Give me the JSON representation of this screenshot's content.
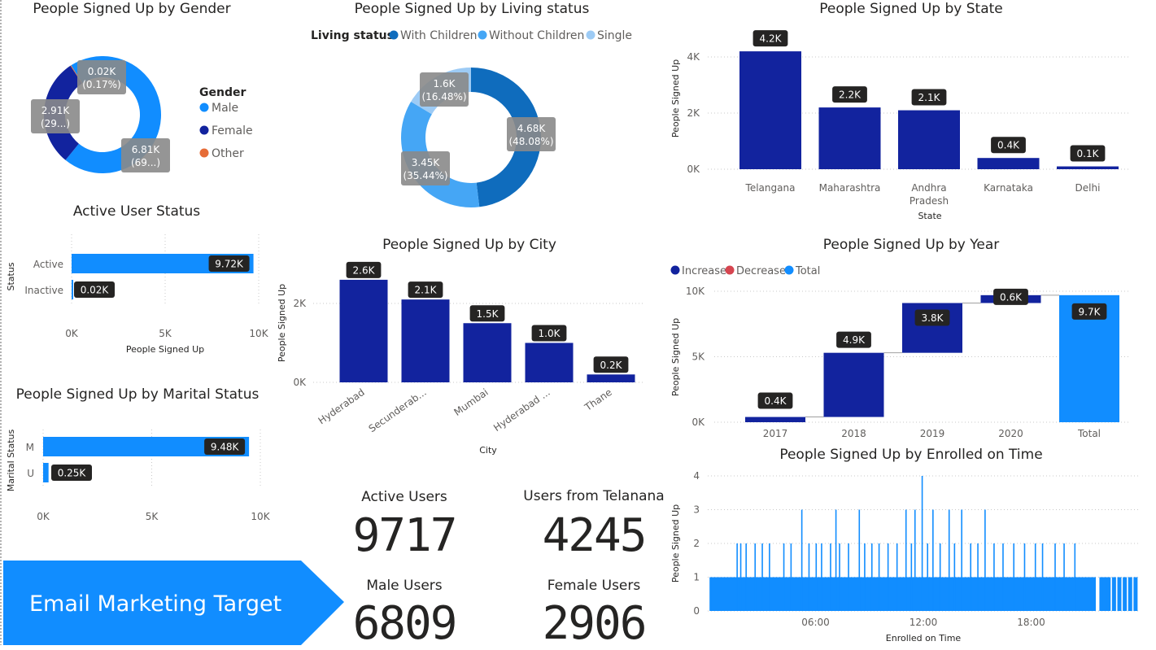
{
  "banner": {
    "text": "Email Marketing Target"
  },
  "kpis": [
    {
      "label": "Active Users",
      "value": "9717"
    },
    {
      "label": "Users from Telanana",
      "value": "4245"
    },
    {
      "label": "Male Users",
      "value": "6809"
    },
    {
      "label": "Female Users",
      "value": "2906"
    }
  ],
  "chart_data": [
    {
      "id": "gender",
      "type": "pie",
      "donut": true,
      "title": "People Signed Up by Gender",
      "legend_title": "Gender",
      "legend_position": "right",
      "series": [
        {
          "name": "Male",
          "value": 6.81,
          "label": "6.81K",
          "pct": "(69...)",
          "color": "#118DFF"
        },
        {
          "name": "Female",
          "value": 2.91,
          "label": "2.91K",
          "pct": "(29...)",
          "color": "#12239E"
        },
        {
          "name": "Other",
          "value": 0.02,
          "label": "0.02K",
          "pct": "(0.17%)",
          "color": "#E66C37"
        }
      ]
    },
    {
      "id": "living",
      "type": "pie",
      "donut": true,
      "title": "People Signed Up by Living status",
      "legend_title": "Living status",
      "legend_position": "top",
      "series": [
        {
          "name": "With Children",
          "value": 4.68,
          "label": "4.68K",
          "pct": "(48.08%)",
          "color": "#0F6CBD"
        },
        {
          "name": "Without Children",
          "value": 3.45,
          "label": "3.45K",
          "pct": "(35.44%)",
          "color": "#45A6F5"
        },
        {
          "name": "Single",
          "value": 1.6,
          "label": "1.6K",
          "pct": "(16.48%)",
          "color": "#9DCBF5"
        }
      ]
    },
    {
      "id": "state",
      "type": "bar",
      "title": "People Signed Up by State",
      "xlabel": "State",
      "ylabel": "People Signed Up",
      "categories": [
        "Telangana",
        "Maharashtra",
        "Andhra Pradesh",
        "Karnataka",
        "Delhi"
      ],
      "values": [
        4.2,
        2.2,
        2.1,
        0.4,
        0.1
      ],
      "labels": [
        "4.2K",
        "2.2K",
        "2.1K",
        "0.4K",
        "0.1K"
      ],
      "ylim": [
        0,
        4.5
      ],
      "ticks": [
        0,
        2,
        4
      ],
      "tick_labels": [
        "0K",
        "2K",
        "4K"
      ],
      "color": "#12239E"
    },
    {
      "id": "active",
      "type": "bar",
      "orientation": "horizontal",
      "title": "Active User Status",
      "xlabel": "People Signed Up",
      "ylabel": "Status",
      "categories": [
        "Active",
        "Inactive"
      ],
      "values": [
        9.72,
        0.02
      ],
      "labels": [
        "9.72K",
        "0.02K"
      ],
      "xlim": [
        0,
        10
      ],
      "ticks": [
        0,
        5,
        10
      ],
      "tick_labels": [
        "0K",
        "5K",
        "10K"
      ],
      "color": "#118DFF"
    },
    {
      "id": "city",
      "type": "bar",
      "title": "People Signed Up by City",
      "xlabel": "City",
      "ylabel": "People Signed Up",
      "categories": [
        "Hyderabad",
        "Secunderab...",
        "Mumbai",
        "Hyderabad ...",
        "Thane"
      ],
      "values": [
        2.6,
        2.1,
        1.5,
        1.0,
        0.2
      ],
      "labels": [
        "2.6K",
        "2.1K",
        "1.5K",
        "1.0K",
        "0.2K"
      ],
      "ylim": [
        0,
        2.9
      ],
      "ticks": [
        0,
        2
      ],
      "tick_labels": [
        "0K",
        "2K"
      ],
      "color": "#12239E"
    },
    {
      "id": "year",
      "type": "waterfall",
      "title": "People Signed Up by Year",
      "ylabel": "People Signed Up",
      "legend_position": "top-left",
      "legend": [
        {
          "name": "Increase",
          "color": "#12239E"
        },
        {
          "name": "Decrease",
          "color": "#D64550"
        },
        {
          "name": "Total",
          "color": "#118DFF"
        }
      ],
      "categories": [
        "2017",
        "2018",
        "2019",
        "2020",
        "Total"
      ],
      "values": [
        0.4,
        4.9,
        3.8,
        0.6,
        9.7
      ],
      "labels": [
        "0.4K",
        "4.9K",
        "3.8K",
        "0.6K",
        "9.7K"
      ],
      "ylim": [
        0,
        10
      ],
      "ticks": [
        0,
        5,
        10
      ],
      "tick_labels": [
        "0K",
        "5K",
        "10K"
      ]
    },
    {
      "id": "marital",
      "type": "bar",
      "orientation": "horizontal",
      "title": "People Signed Up by Marital Status",
      "ylabel": "Marital Status",
      "categories": [
        "M",
        "U"
      ],
      "values": [
        9.48,
        0.25
      ],
      "labels": [
        "9.48K",
        "0.25K"
      ],
      "xlim": [
        0,
        10
      ],
      "ticks": [
        0,
        5,
        10
      ],
      "tick_labels": [
        "0K",
        "5K",
        "10K"
      ],
      "color": "#118DFF"
    },
    {
      "id": "enrolled",
      "type": "bar",
      "title": "People Signed Up by Enrolled on Time",
      "xlabel": "Enrolled on Time",
      "ylabel": "People Signed Up",
      "x_tick_labels": [
        "06:00",
        "12:00",
        "18:00"
      ],
      "x_tick_hours": [
        6,
        12,
        18
      ],
      "xlim_hours": [
        0,
        24
      ],
      "ylim": [
        0,
        4
      ],
      "ticks": [
        0,
        1,
        2,
        3,
        4
      ],
      "tick_labels": [
        "0",
        "1",
        "2",
        "3",
        "4"
      ],
      "baseline_value": 1,
      "baseline_hours": [
        0.1,
        21.6
      ],
      "spikes": [
        {
          "h": 1.6,
          "v": 2
        },
        {
          "h": 1.8,
          "v": 2
        },
        {
          "h": 2.1,
          "v": 2
        },
        {
          "h": 2.6,
          "v": 2
        },
        {
          "h": 3.0,
          "v": 2
        },
        {
          "h": 3.4,
          "v": 2
        },
        {
          "h": 4.2,
          "v": 2
        },
        {
          "h": 4.6,
          "v": 2
        },
        {
          "h": 5.2,
          "v": 3
        },
        {
          "h": 5.6,
          "v": 2
        },
        {
          "h": 6.0,
          "v": 2
        },
        {
          "h": 6.3,
          "v": 2
        },
        {
          "h": 6.8,
          "v": 2
        },
        {
          "h": 7.1,
          "v": 3
        },
        {
          "h": 7.3,
          "v": 2
        },
        {
          "h": 7.8,
          "v": 2
        },
        {
          "h": 8.4,
          "v": 3
        },
        {
          "h": 8.7,
          "v": 2
        },
        {
          "h": 9.1,
          "v": 2
        },
        {
          "h": 9.5,
          "v": 2
        },
        {
          "h": 10.0,
          "v": 2
        },
        {
          "h": 10.5,
          "v": 2
        },
        {
          "h": 11.0,
          "v": 3
        },
        {
          "h": 11.3,
          "v": 2
        },
        {
          "h": 11.5,
          "v": 3
        },
        {
          "h": 11.9,
          "v": 4
        },
        {
          "h": 12.2,
          "v": 2
        },
        {
          "h": 12.5,
          "v": 3
        },
        {
          "h": 12.9,
          "v": 2
        },
        {
          "h": 13.4,
          "v": 3
        },
        {
          "h": 13.7,
          "v": 2
        },
        {
          "h": 14.1,
          "v": 3
        },
        {
          "h": 14.6,
          "v": 2
        },
        {
          "h": 15.0,
          "v": 2
        },
        {
          "h": 15.4,
          "v": 3
        },
        {
          "h": 15.9,
          "v": 2
        },
        {
          "h": 16.4,
          "v": 2
        },
        {
          "h": 17.0,
          "v": 2
        },
        {
          "h": 17.6,
          "v": 2
        },
        {
          "h": 18.2,
          "v": 2
        },
        {
          "h": 18.6,
          "v": 2
        },
        {
          "h": 19.3,
          "v": 2
        },
        {
          "h": 19.8,
          "v": 2
        },
        {
          "h": 20.4,
          "v": 2
        }
      ],
      "tail_hours": [
        21.8,
        22.0,
        22.2,
        22.5,
        22.8,
        23.1,
        23.4,
        23.7
      ],
      "color": "#118DFF"
    }
  ]
}
